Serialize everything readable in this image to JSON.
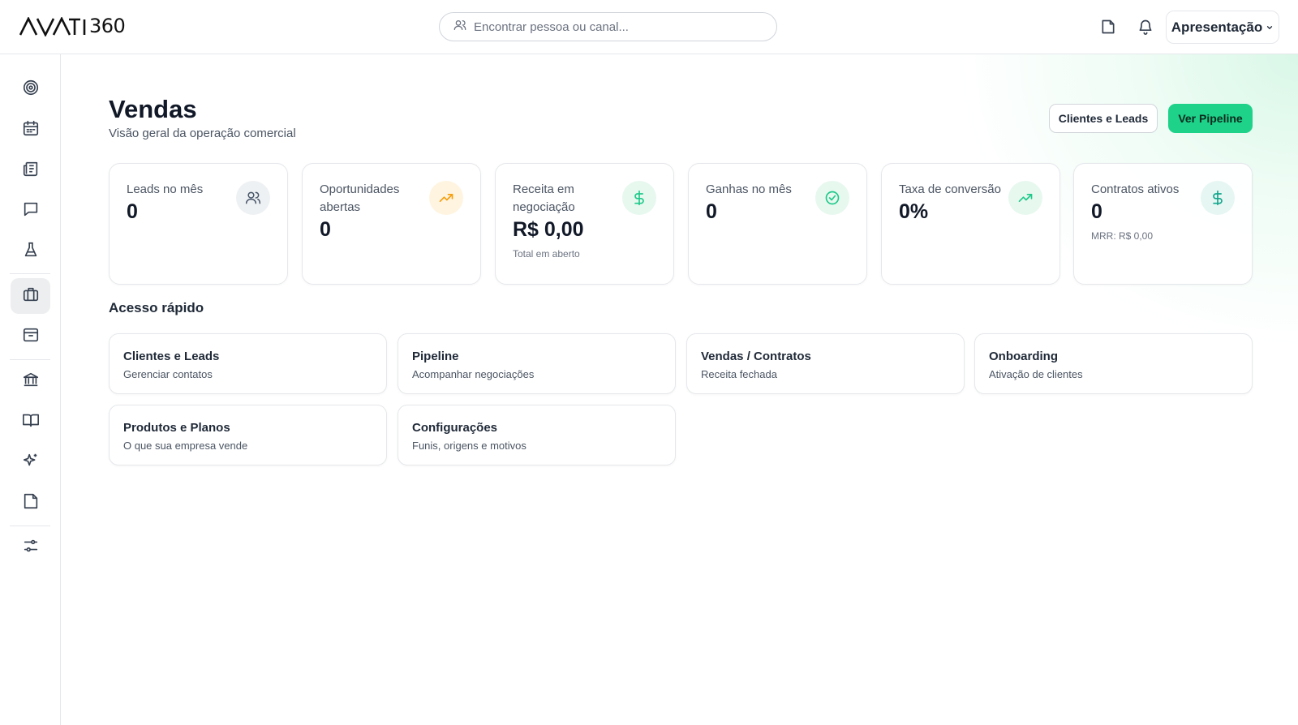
{
  "brand": {
    "logo_text": "AVATI360"
  },
  "search": {
    "placeholder": "Encontrar pessoa ou canal..."
  },
  "header": {
    "workspace_label": "Apresentação"
  },
  "page": {
    "title": "Vendas",
    "subtitle": "Visão geral da operação comercial",
    "secondary_button": "Clientes e Leads",
    "primary_button": "Ver Pipeline"
  },
  "stats": [
    {
      "label": "Leads no mês",
      "value": "0",
      "note": "",
      "icon": "users-icon"
    },
    {
      "label": "Oportunidades abertas",
      "value": "0",
      "note": "",
      "icon": "trending-up-icon"
    },
    {
      "label": "Receita em negociação",
      "value": "R$ 0,00",
      "note": "Total em aberto",
      "icon": "dollar-icon"
    },
    {
      "label": "Ganhas no mês",
      "value": "0",
      "note": "",
      "icon": "check-circle-icon"
    },
    {
      "label": "Taxa de conversão",
      "value": "0%",
      "note": "",
      "icon": "trending-up-icon"
    },
    {
      "label": "Contratos ativos",
      "value": "0",
      "note": "MRR: R$ 0,00",
      "icon": "dollar-icon"
    }
  ],
  "quick_access": {
    "title": "Acesso rápido",
    "items": [
      {
        "title": "Clientes e Leads",
        "description": "Gerenciar contatos"
      },
      {
        "title": "Pipeline",
        "description": "Acompanhar negociações"
      },
      {
        "title": "Vendas / Contratos",
        "description": "Receita fechada"
      },
      {
        "title": "Onboarding",
        "description": "Ativação de clientes"
      },
      {
        "title": "Produtos e Planos",
        "description": "O que sua empresa vende"
      },
      {
        "title": "Configurações",
        "description": "Funis, origens e motivos"
      }
    ]
  },
  "sidebar": {
    "items": [
      {
        "icon": "target-icon"
      },
      {
        "icon": "calendar-icon"
      },
      {
        "icon": "newspaper-icon"
      },
      {
        "icon": "chat-icon"
      },
      {
        "icon": "flask-icon"
      },
      {
        "icon": "briefcase-icon",
        "active": true
      },
      {
        "icon": "inbox-icon"
      },
      {
        "icon": "bank-icon"
      },
      {
        "icon": "book-icon"
      },
      {
        "icon": "sparkles-icon"
      },
      {
        "icon": "note-icon"
      },
      {
        "icon": "sliders-icon"
      }
    ]
  },
  "colors": {
    "accent": "#1ed28a",
    "amber": "#f59e0b",
    "teal": "#1ec98a",
    "gray_icon": "#4b5563"
  }
}
